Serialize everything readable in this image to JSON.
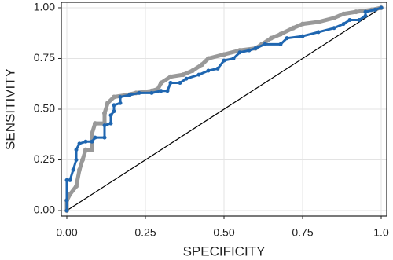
{
  "chart_data": {
    "type": "line",
    "xlabel": "SPECIFICITY",
    "ylabel": "SENSITIVITY",
    "xlim": [
      -0.0175,
      1.0175
    ],
    "ylim": [
      -0.027,
      1.027
    ],
    "xticks": [
      {
        "value": 0,
        "label": "0.00"
      },
      {
        "value": 0.25,
        "label": "0.25"
      },
      {
        "value": 0.5,
        "label": "0.50"
      },
      {
        "value": 0.75,
        "label": "0.75"
      },
      {
        "value": 1,
        "label": "1.0"
      }
    ],
    "yticks": [
      {
        "value": 0,
        "label": "0.00"
      },
      {
        "value": 0.25,
        "label": "0.25"
      },
      {
        "value": 0.5,
        "label": "0.50"
      },
      {
        "value": 0.75,
        "label": "0.75"
      },
      {
        "value": 1,
        "label": "1.00"
      }
    ],
    "grid": true,
    "reference_line": {
      "x": [
        0,
        1
      ],
      "values": [
        0,
        1
      ],
      "color": "#000000"
    },
    "series": [
      {
        "color": "#999999",
        "x": [
          0,
          0,
          0.01,
          0.03,
          0.04,
          0.05,
          0.06,
          0.08,
          0.08,
          0.09,
          0.12,
          0.12,
          0.13,
          0.15,
          0.19,
          0.22,
          0.27,
          0.29,
          0.3,
          0.33,
          0.37,
          0.4,
          0.43,
          0.45,
          0.5,
          0.55,
          0.6,
          0.62,
          0.65,
          0.68,
          0.72,
          0.75,
          0.8,
          0.85,
          0.88,
          0.92,
          0.97,
          1
        ],
        "values": [
          0,
          0.05,
          0.08,
          0.12,
          0.2,
          0.25,
          0.3,
          0.3,
          0.38,
          0.43,
          0.43,
          0.48,
          0.53,
          0.56,
          0.57,
          0.58,
          0.59,
          0.6,
          0.63,
          0.66,
          0.67,
          0.69,
          0.72,
          0.75,
          0.77,
          0.79,
          0.8,
          0.82,
          0.85,
          0.87,
          0.9,
          0.92,
          0.93,
          0.95,
          0.97,
          0.98,
          0.99,
          1
        ]
      },
      {
        "color": "#1f66b0",
        "x": [
          0,
          0,
          0,
          0.01,
          0.02,
          0.03,
          0.03,
          0.04,
          0.06,
          0.08,
          0.09,
          0.12,
          0.12,
          0.14,
          0.14,
          0.15,
          0.15,
          0.17,
          0.17,
          0.2,
          0.23,
          0.27,
          0.3,
          0.32,
          0.33,
          0.36,
          0.38,
          0.42,
          0.45,
          0.48,
          0.5,
          0.53,
          0.55,
          0.58,
          0.6,
          0.63,
          0.68,
          0.7,
          0.75,
          0.8,
          0.85,
          0.88,
          0.9,
          0.93,
          0.95,
          0.95,
          0.98,
          1
        ],
        "values": [
          0,
          0.05,
          0.15,
          0.15,
          0.2,
          0.25,
          0.3,
          0.33,
          0.34,
          0.34,
          0.36,
          0.36,
          0.42,
          0.43,
          0.47,
          0.49,
          0.52,
          0.53,
          0.56,
          0.57,
          0.58,
          0.58,
          0.59,
          0.59,
          0.63,
          0.63,
          0.65,
          0.67,
          0.69,
          0.7,
          0.74,
          0.75,
          0.78,
          0.79,
          0.8,
          0.82,
          0.82,
          0.85,
          0.86,
          0.88,
          0.9,
          0.92,
          0.94,
          0.94,
          0.96,
          0.98,
          0.99,
          1
        ]
      }
    ]
  }
}
